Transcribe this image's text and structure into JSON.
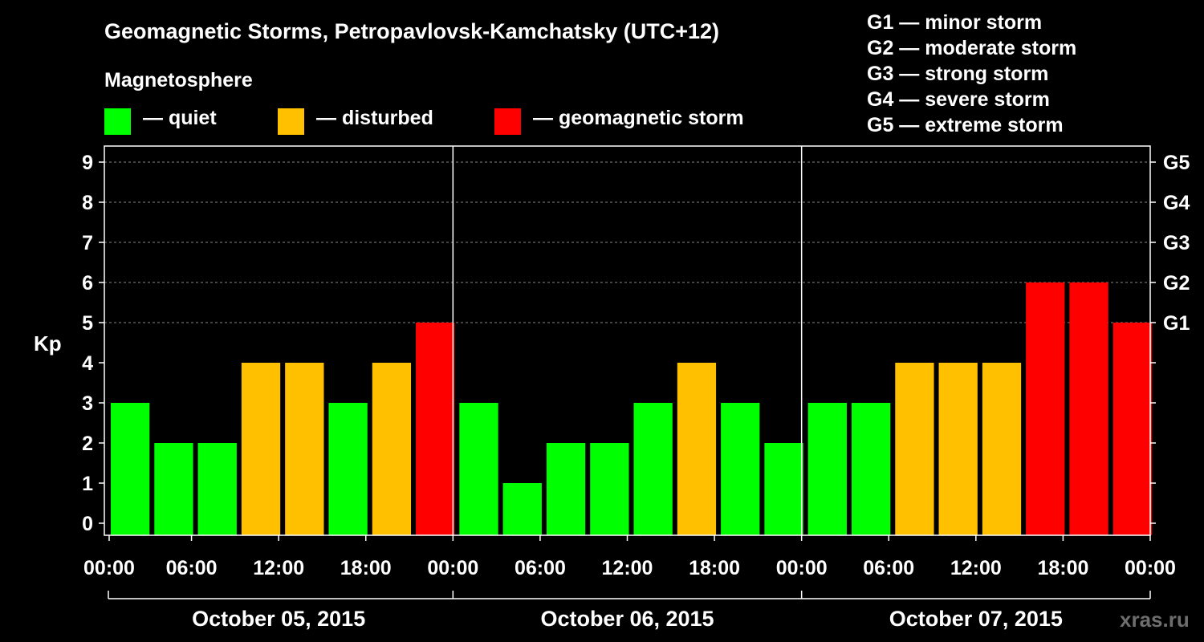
{
  "title": "Geomagnetic Storms, Petropavlovsk-Kamchatsky (UTC+12)",
  "magnetosphere": {
    "title": "Magnetosphere",
    "items": [
      {
        "color": "#00ff00",
        "label": "— quiet"
      },
      {
        "color": "#ffc000",
        "label": "— disturbed"
      },
      {
        "color": "#ff0000",
        "label": "— geomagnetic storm"
      }
    ]
  },
  "storm_scale": [
    "G1 — minor storm",
    "G2 — moderate storm",
    "G3 — strong storm",
    "G4 — severe storm",
    "G5 — extreme storm"
  ],
  "watermark": "xras.ru",
  "chart_data": {
    "type": "bar",
    "ylabel": "Kp",
    "ylim": [
      0,
      9
    ],
    "yticks": [
      "0",
      "1",
      "2",
      "3",
      "4",
      "5",
      "6",
      "7",
      "8",
      "9"
    ],
    "right_ticks": [
      {
        "kp": 5,
        "label": "G1"
      },
      {
        "kp": 6,
        "label": "G2"
      },
      {
        "kp": 7,
        "label": "G3"
      },
      {
        "kp": 8,
        "label": "G4"
      },
      {
        "kp": 9,
        "label": "G5"
      }
    ],
    "grid": "dashed at 5-9",
    "days": [
      {
        "label": "October 05, 2015",
        "values": [
          3,
          2,
          2,
          4,
          4,
          3,
          4,
          5
        ]
      },
      {
        "label": "October 06, 2015",
        "values": [
          3,
          1,
          2,
          2,
          3,
          4,
          3,
          2
        ]
      },
      {
        "label": "October 07, 2015",
        "values": [
          3,
          3,
          4,
          4,
          4,
          6,
          6,
          5
        ]
      }
    ],
    "time_ticks": [
      "00:00",
      "06:00",
      "12:00",
      "18:00",
      "00:00",
      "06:00",
      "12:00",
      "18:00",
      "00:00",
      "06:00",
      "12:00",
      "18:00",
      "00:00"
    ],
    "colors": {
      "quiet": "#00ff00",
      "disturbed": "#ffc000",
      "storm": "#ff0000"
    }
  }
}
